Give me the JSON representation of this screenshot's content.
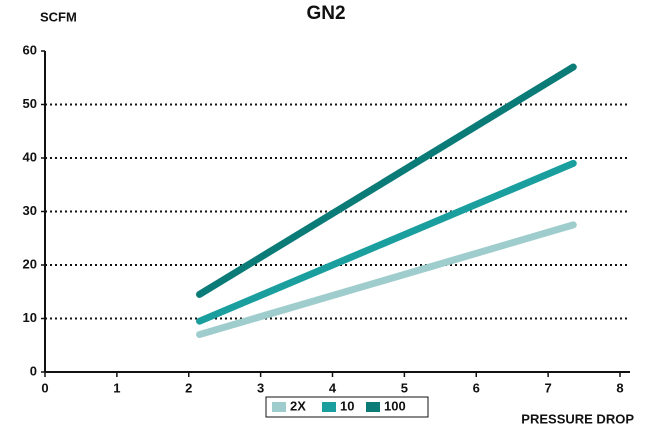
{
  "chart_data": {
    "type": "line",
    "title": "GN2",
    "ylabel": "SCFM",
    "xlabel": "PRESSURE DROP",
    "xlim": [
      0,
      8
    ],
    "xticks": [
      0,
      1,
      2,
      3,
      4,
      5,
      6,
      7,
      8
    ],
    "ylim": [
      0,
      60
    ],
    "yticks": [
      0,
      10,
      20,
      30,
      40,
      50,
      60
    ],
    "grid": true,
    "legend": "bottom",
    "series": [
      {
        "name": "2X",
        "color": "#9fcccc",
        "x": [
          2.15,
          7.35
        ],
        "values": [
          7,
          27.5
        ]
      },
      {
        "name": "10",
        "color": "#1a9e9e",
        "x": [
          2.15,
          7.35
        ],
        "values": [
          9.5,
          39
        ]
      },
      {
        "name": "100",
        "color": "#0b7b78",
        "x": [
          2.15,
          7.35
        ],
        "values": [
          14.5,
          57
        ]
      }
    ]
  }
}
